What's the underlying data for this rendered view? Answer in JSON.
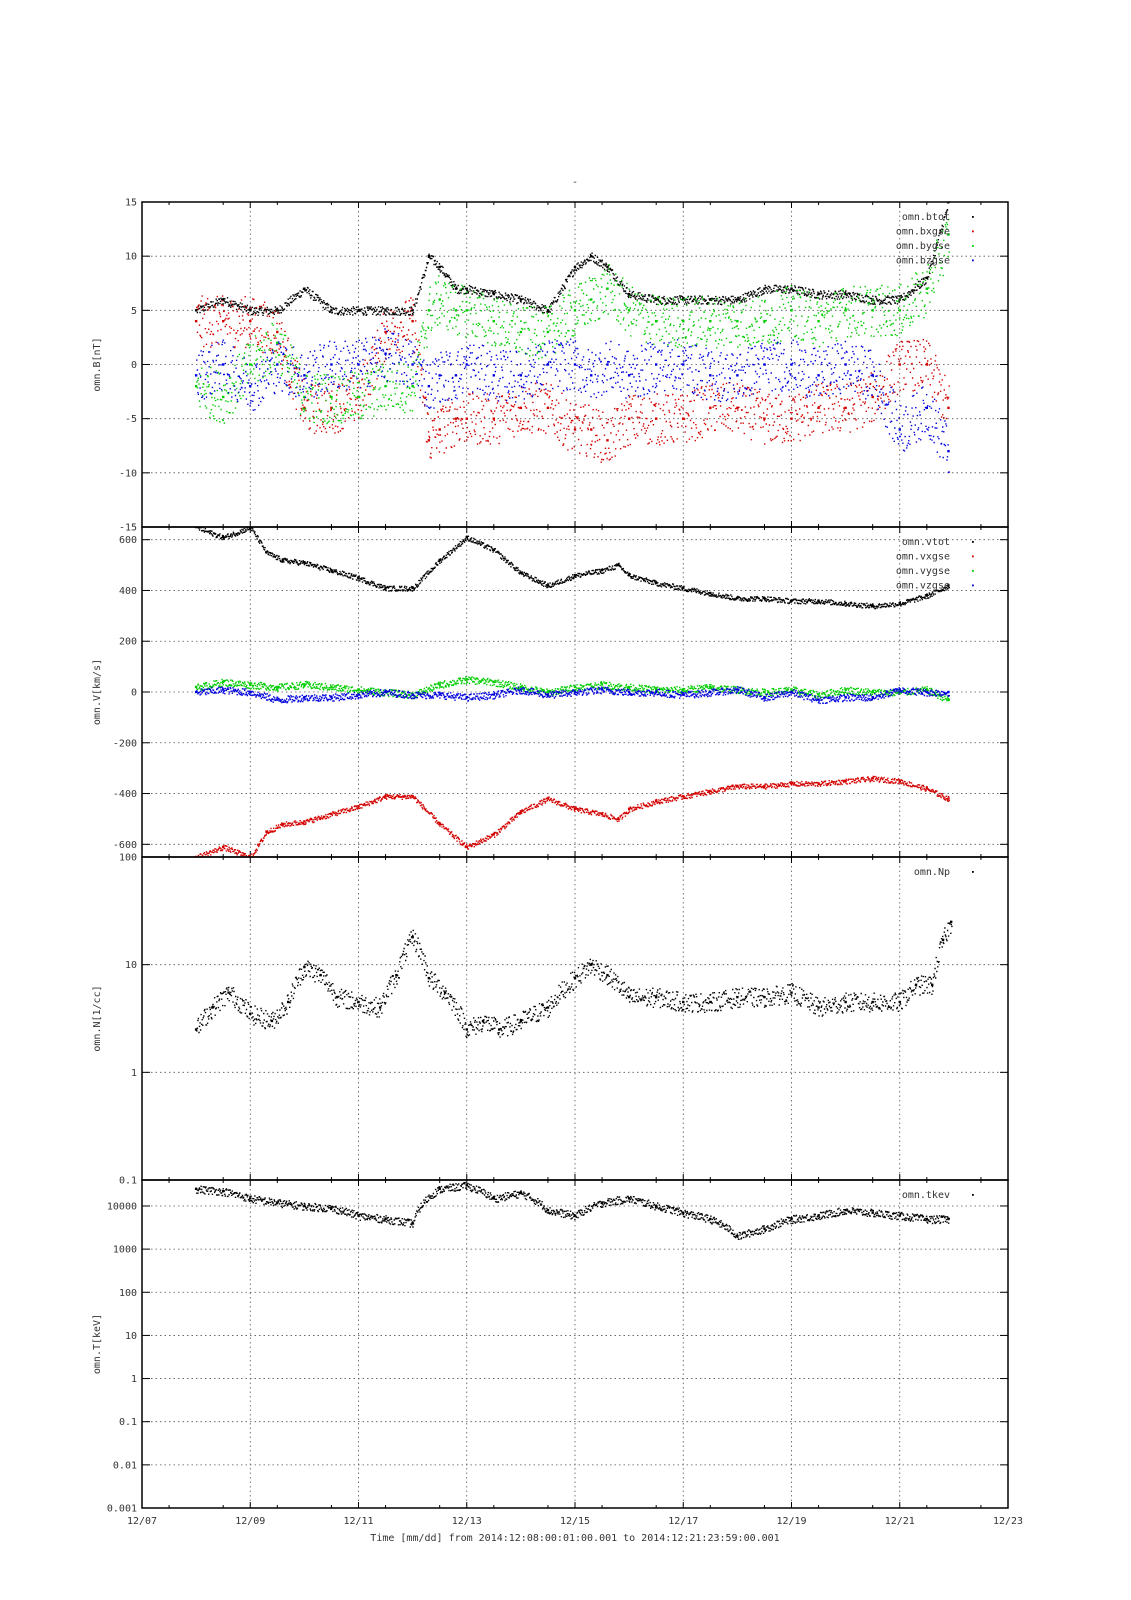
{
  "figure": {
    "title": "-",
    "xlabel": "Time [mm/dd]  from 2014:12:08:00:01:00.001  to  2014:12:21:23:59:00.001",
    "x_ticks": [
      "12/07",
      "12/09",
      "12/11",
      "12/13",
      "12/15",
      "12/17",
      "12/19",
      "12/21",
      "12/23"
    ]
  },
  "colors": {
    "black": "#000000",
    "red": "#d40000",
    "green": "#00cc00",
    "blue": "#0000dd",
    "grid": "#555555"
  },
  "chart_data": [
    {
      "type": "scatter",
      "ylabel": "omn.B[nT]",
      "xlim": [
        "12/07",
        "12/23"
      ],
      "ylim": [
        -15,
        15
      ],
      "y_ticks": [
        "15",
        "10",
        "5",
        "0",
        "-5",
        "-10",
        "-15"
      ],
      "grid": true,
      "legend_position": "top-right",
      "series": [
        {
          "name": "omn.btot",
          "color": "#000000",
          "x": [
            8.0,
            8.5,
            9.0,
            9.5,
            10.0,
            10.5,
            11.0,
            11.5,
            12.0,
            12.3,
            12.5,
            12.8,
            13.0,
            13.5,
            14.0,
            14.5,
            15.0,
            15.3,
            15.6,
            16.0,
            16.5,
            17.0,
            17.5,
            18.0,
            18.5,
            19.0,
            19.5,
            20.0,
            20.5,
            21.0,
            21.5,
            21.9
          ],
          "y": [
            5,
            6,
            5,
            5,
            7,
            5,
            5,
            5,
            5,
            10,
            9,
            7,
            7,
            6.5,
            6,
            5,
            9,
            10,
            9,
            6.5,
            6,
            6,
            6,
            6,
            7,
            7,
            6.5,
            6.5,
            6,
            6,
            8,
            15
          ]
        },
        {
          "name": "omn.bxgse",
          "color": "#d40000",
          "x": [
            8.0,
            8.5,
            9.0,
            9.5,
            10.0,
            10.5,
            11.0,
            11.5,
            12.0,
            12.3,
            12.5,
            12.8,
            13.0,
            13.5,
            14.0,
            14.5,
            15.0,
            15.3,
            15.6,
            16.0,
            16.5,
            17.0,
            17.5,
            18.0,
            18.5,
            19.0,
            19.5,
            20.0,
            20.5,
            21.0,
            21.5,
            21.9
          ],
          "y": [
            4,
            4,
            4,
            3,
            -4,
            -4,
            -3,
            3,
            4,
            -7,
            -6,
            -5,
            -5,
            -5,
            -4,
            -4,
            -6,
            -6,
            -7,
            -5,
            -5,
            -5,
            -4,
            -4,
            -5,
            -5,
            -4,
            -4,
            -3,
            0,
            0,
            -4
          ]
        },
        {
          "name": "omn.bygse",
          "color": "#00cc00",
          "x": [
            8.0,
            8.5,
            9.0,
            9.5,
            10.0,
            10.5,
            11.0,
            11.5,
            12.0,
            12.3,
            12.5,
            12.8,
            13.0,
            13.5,
            14.0,
            14.5,
            15.0,
            15.3,
            15.6,
            16.0,
            16.5,
            17.0,
            17.5,
            18.0,
            18.5,
            19.0,
            19.5,
            20.0,
            20.5,
            21.0,
            21.5,
            21.9
          ],
          "y": [
            -2,
            -3,
            0,
            2,
            -3,
            -3,
            -3,
            -2,
            -2,
            5,
            6,
            5,
            5,
            4,
            3,
            3,
            5,
            6,
            7,
            5,
            4,
            4,
            4,
            4,
            4,
            5,
            4,
            5,
            5,
            5,
            7,
            12
          ]
        },
        {
          "name": "omn.bzgse",
          "color": "#0000dd",
          "x": [
            8.0,
            8.5,
            9.0,
            9.5,
            10.0,
            10.5,
            11.0,
            11.5,
            12.0,
            12.3,
            12.5,
            12.8,
            13.0,
            13.5,
            14.0,
            14.5,
            15.0,
            15.3,
            15.6,
            16.0,
            16.5,
            17.0,
            17.5,
            18.0,
            18.5,
            19.0,
            19.5,
            20.0,
            20.5,
            21.0,
            21.5,
            21.9
          ],
          "y": [
            -1,
            0,
            -2,
            0,
            -1,
            0,
            0,
            1,
            0,
            -2,
            -1,
            -1,
            0,
            -1,
            -1,
            0,
            0,
            -1,
            0,
            -1,
            0,
            0,
            -1,
            -1,
            0,
            0,
            -1,
            0,
            -1,
            -6,
            -4,
            -8
          ]
        }
      ]
    },
    {
      "type": "scatter",
      "ylabel": "omn.V[km/s]",
      "xlim": [
        "12/07",
        "12/23"
      ],
      "ylim": [
        -650,
        650
      ],
      "y_ticks": [
        "600",
        "400",
        "200",
        "0",
        "-200",
        "-400",
        "-600"
      ],
      "grid": true,
      "legend_position": "top-right",
      "series": [
        {
          "name": "omn.vtot",
          "color": "#000000",
          "x": [
            8.0,
            8.5,
            9.0,
            9.3,
            9.6,
            10.0,
            10.5,
            11.0,
            11.5,
            12.0,
            12.5,
            13.0,
            13.5,
            14.0,
            14.5,
            15.0,
            15.5,
            15.8,
            16.0,
            16.5,
            17.0,
            17.5,
            18.0,
            18.5,
            19.0,
            19.5,
            20.0,
            20.5,
            21.0,
            21.5,
            21.9
          ],
          "y": [
            650,
            610,
            650,
            550,
            520,
            510,
            480,
            450,
            410,
            410,
            520,
            610,
            560,
            470,
            420,
            460,
            480,
            500,
            460,
            430,
            410,
            390,
            370,
            370,
            360,
            360,
            350,
            340,
            350,
            380,
            420
          ]
        },
        {
          "name": "omn.vxgse",
          "color": "#d40000",
          "x": [
            8.0,
            8.5,
            9.0,
            9.3,
            9.6,
            10.0,
            10.5,
            11.0,
            11.5,
            12.0,
            12.5,
            13.0,
            13.5,
            14.0,
            14.5,
            15.0,
            15.5,
            15.8,
            16.0,
            16.5,
            17.0,
            17.5,
            18.0,
            18.5,
            19.0,
            19.5,
            20.0,
            20.5,
            21.0,
            21.5,
            21.9
          ],
          "y": [
            -650,
            -610,
            -650,
            -550,
            -520,
            -510,
            -480,
            -450,
            -410,
            -410,
            -520,
            -610,
            -560,
            -470,
            -420,
            -460,
            -480,
            -500,
            -460,
            -430,
            -410,
            -390,
            -370,
            -370,
            -360,
            -360,
            -350,
            -340,
            -350,
            -380,
            -420
          ]
        },
        {
          "name": "omn.vygse",
          "color": "#00cc00",
          "x": [
            8.0,
            8.5,
            9.0,
            9.5,
            10.0,
            10.5,
            11.0,
            11.5,
            12.0,
            12.5,
            13.0,
            13.5,
            14.0,
            14.5,
            15.0,
            15.5,
            16.0,
            16.5,
            17.0,
            17.5,
            18.0,
            18.5,
            19.0,
            19.5,
            20.0,
            20.5,
            21.0,
            21.5,
            21.9
          ],
          "y": [
            20,
            40,
            30,
            20,
            30,
            20,
            10,
            0,
            -10,
            30,
            50,
            40,
            20,
            0,
            20,
            30,
            20,
            10,
            10,
            20,
            10,
            0,
            10,
            -10,
            10,
            0,
            0,
            10,
            -30
          ]
        },
        {
          "name": "omn.vzgse",
          "color": "#0000dd",
          "x": [
            8.0,
            8.5,
            9.0,
            9.5,
            10.0,
            10.5,
            11.0,
            11.5,
            12.0,
            12.5,
            13.0,
            13.5,
            14.0,
            14.5,
            15.0,
            15.5,
            16.0,
            16.5,
            17.0,
            17.5,
            18.0,
            18.5,
            19.0,
            19.5,
            20.0,
            20.5,
            21.0,
            21.5,
            21.9
          ],
          "y": [
            0,
            10,
            0,
            -30,
            -20,
            -20,
            -10,
            0,
            -10,
            -10,
            -20,
            -10,
            10,
            -10,
            0,
            10,
            0,
            0,
            -10,
            0,
            10,
            -20,
            0,
            -30,
            -20,
            -20,
            10,
            0,
            0
          ]
        }
      ]
    },
    {
      "type": "scatter",
      "ylabel": "omn.N[1/cc]",
      "xlim": [
        "12/07",
        "12/23"
      ],
      "ylim": [
        0.1,
        100
      ],
      "log_y": true,
      "y_ticks": [
        "100",
        "10",
        "1",
        "0.1"
      ],
      "grid": true,
      "legend_position": "top-right",
      "series": [
        {
          "name": "omn.Np",
          "color": "#000000",
          "x": [
            8.0,
            8.3,
            8.6,
            9.0,
            9.4,
            9.7,
            10.0,
            10.3,
            10.6,
            11.0,
            11.4,
            11.7,
            12.0,
            12.3,
            12.6,
            13.0,
            13.3,
            13.6,
            14.0,
            14.5,
            15.0,
            15.3,
            15.6,
            16.0,
            16.5,
            17.0,
            17.5,
            18.0,
            18.5,
            19.0,
            19.5,
            20.0,
            20.5,
            21.0,
            21.3,
            21.6,
            21.8,
            21.95
          ],
          "y": [
            2.5,
            4.0,
            5.5,
            3.5,
            3.0,
            4.5,
            9.5,
            8.0,
            5.0,
            4.5,
            4.0,
            8.0,
            18.0,
            7.5,
            5.5,
            2.5,
            3.0,
            2.5,
            3.0,
            4.0,
            7.5,
            10.0,
            8.0,
            5.0,
            5.0,
            4.5,
            4.5,
            5.0,
            5.0,
            5.5,
            4.0,
            4.5,
            4.5,
            4.5,
            6.5,
            6.5,
            17.0,
            25.0
          ]
        }
      ]
    },
    {
      "type": "scatter",
      "ylabel": "omn.T[keV]",
      "xlim": [
        "12/07",
        "12/23"
      ],
      "ylim": [
        0.001,
        40000
      ],
      "log_y": true,
      "y_ticks": [
        "10000",
        "1000",
        "100",
        "10",
        "1",
        "0.1",
        "0.01",
        "0.001"
      ],
      "grid": true,
      "legend_position": "top-right",
      "series": [
        {
          "name": "omn.tkev",
          "color": "#000000",
          "x": [
            8.0,
            8.5,
            9.0,
            9.5,
            10.0,
            10.5,
            11.0,
            11.5,
            12.0,
            12.5,
            13.0,
            13.5,
            14.0,
            14.5,
            15.0,
            15.5,
            16.0,
            16.5,
            17.0,
            17.5,
            18.0,
            18.5,
            19.0,
            19.5,
            20.0,
            20.5,
            21.0,
            21.5,
            21.9
          ],
          "y": [
            25000,
            22000,
            15000,
            12000,
            10000,
            9000,
            6000,
            5000,
            4000,
            25000,
            30000,
            15000,
            20000,
            8000,
            6000,
            12000,
            15000,
            10000,
            7000,
            5000,
            2000,
            3000,
            5000,
            6000,
            8000,
            7000,
            6000,
            5000,
            5000
          ]
        }
      ]
    }
  ]
}
